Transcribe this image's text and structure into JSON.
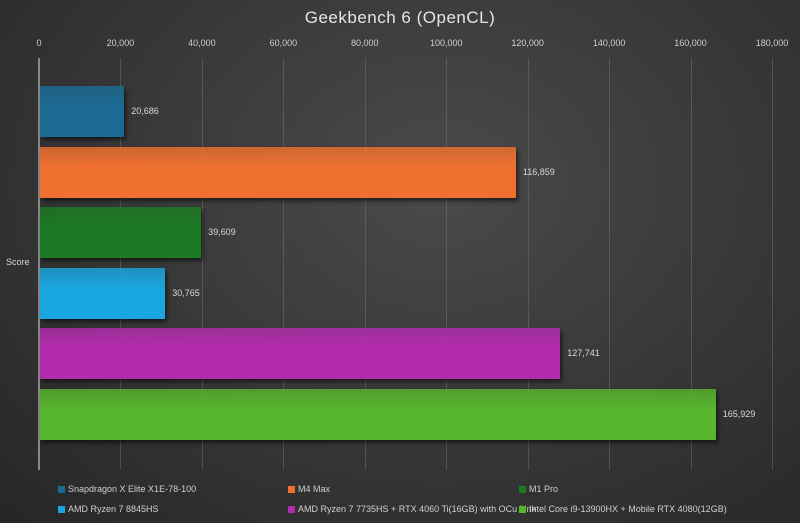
{
  "chart_data": {
    "type": "bar",
    "orientation": "horizontal",
    "title": "Geekbench  6 (OpenCL)",
    "xlabel": "",
    "ylabel": "Score",
    "xlim": [
      0,
      180000
    ],
    "x_ticks": [
      "0",
      "20,000",
      "40,000",
      "60,000",
      "80,000",
      "100,000",
      "120,000",
      "140,000",
      "160,000",
      "180,000"
    ],
    "x_tick_values": [
      0,
      20000,
      40000,
      60000,
      80000,
      100000,
      120000,
      140000,
      160000,
      180000
    ],
    "grid": true,
    "legend_position": "bottom",
    "categories": [
      "Score"
    ],
    "series": [
      {
        "name": "Snapdragon X Elite X1E-78-100",
        "values": [
          20686
        ],
        "label": "20,686",
        "color": "#1b6a93"
      },
      {
        "name": "M4 Max",
        "values": [
          116859
        ],
        "label": "116,859",
        "color": "#f07030"
      },
      {
        "name": "M1 Pro",
        "values": [
          39609
        ],
        "label": "39,609",
        "color": "#1c7a24"
      },
      {
        "name": "AMD Ryzen 7 8845HS",
        "values": [
          30765
        ],
        "label": "30,765",
        "color": "#1aa6e0"
      },
      {
        "name": "AMD Ryzen 7 7735HS + RTX 4060 Ti(16GB) with OCu Link",
        "values": [
          127741
        ],
        "label": "127,741",
        "color": "#b42cae"
      },
      {
        "name": "Intel Core i9-13900HX + Mobile RTX 4080(12GB)",
        "values": [
          165929
        ],
        "label": "165,929",
        "color": "#57b52e"
      }
    ]
  }
}
